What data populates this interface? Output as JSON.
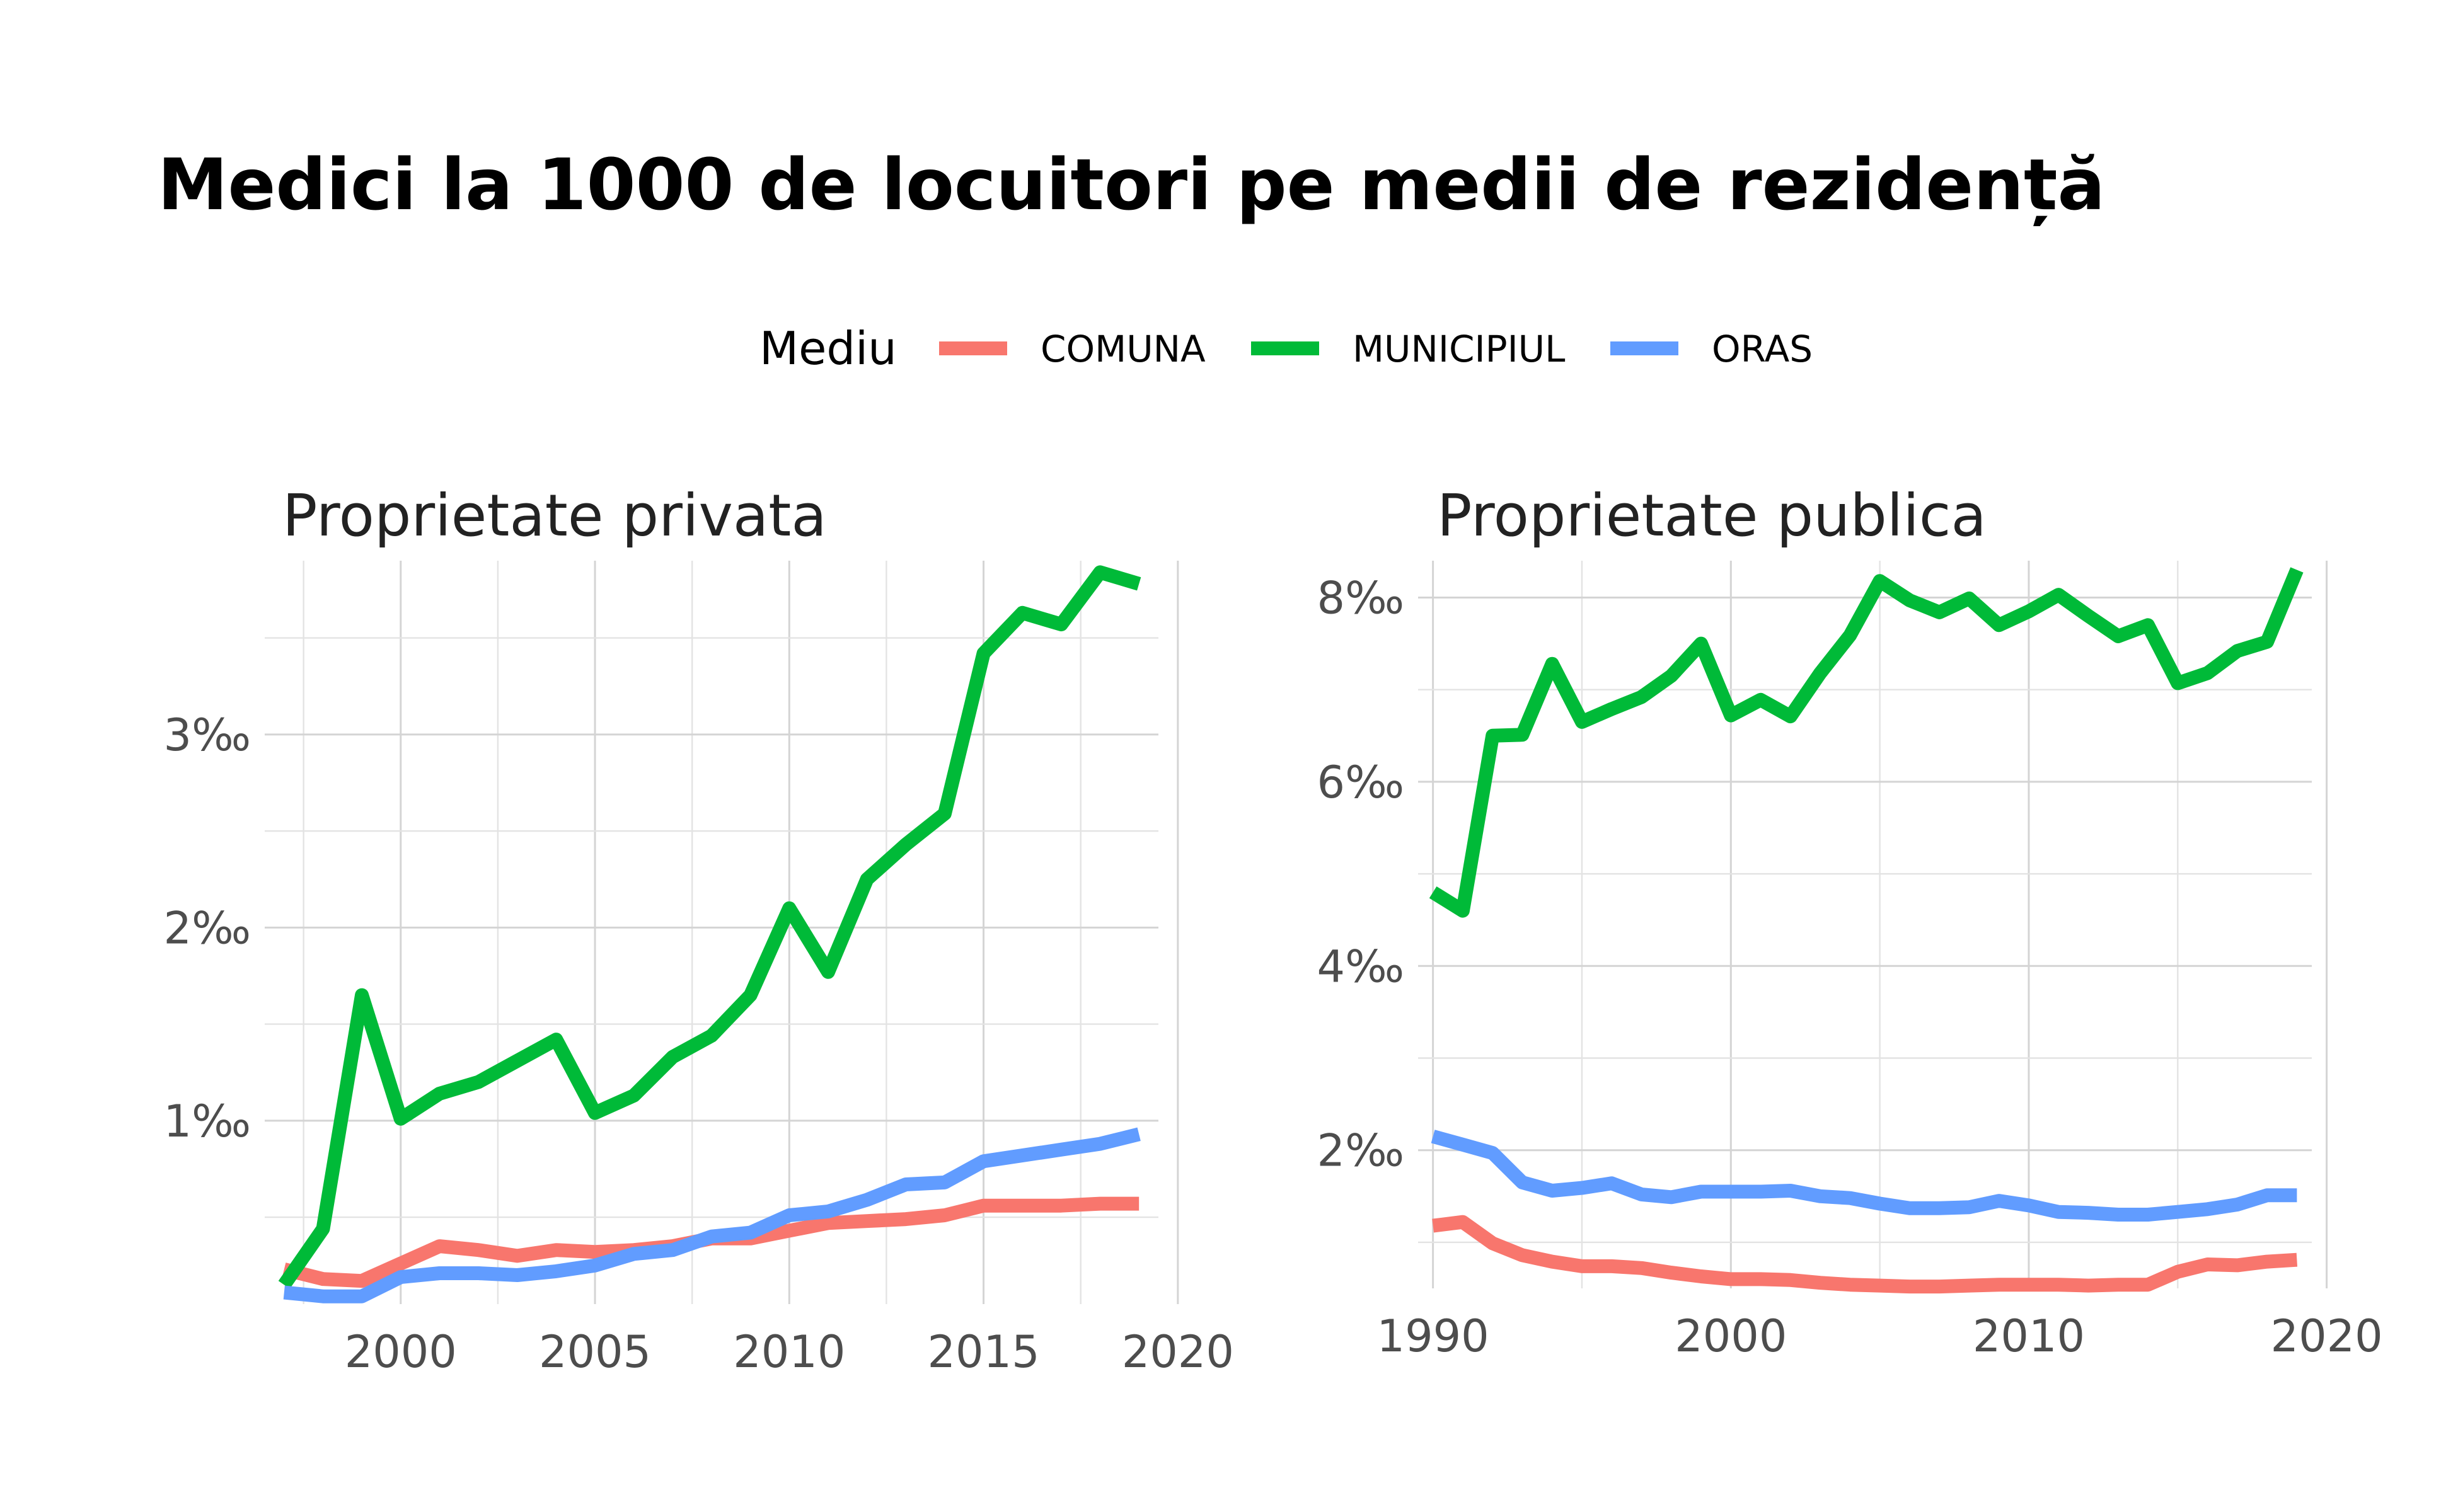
{
  "title": "Medici la 1000 de locuitori pe medii de rezidență",
  "legend": {
    "title": "Mediu",
    "position": "top",
    "items": [
      {
        "name": "COMUNA",
        "color": "#F8766D"
      },
      {
        "name": "MUNICIPIUL",
        "color": "#00BA38"
      },
      {
        "name": "ORAS",
        "color": "#619CFF"
      }
    ]
  },
  "chart_data": [
    {
      "type": "line",
      "title": "Proprietate privata",
      "xlabel": "",
      "ylabel": "",
      "xlim": [
        1996.5,
        2019.5
      ],
      "ylim": [
        0.05,
        3.9
      ],
      "x_ticks": [
        2000,
        2005,
        2010,
        2015,
        2020
      ],
      "y_ticks": [
        1,
        2,
        3
      ],
      "y_tick_labels": [
        "1‰",
        "2‰",
        "3‰"
      ],
      "grid": true,
      "x": [
        1997,
        1998,
        1999,
        2000,
        2001,
        2002,
        2003,
        2004,
        2005,
        2006,
        2007,
        2008,
        2009,
        2010,
        2011,
        2012,
        2013,
        2014,
        2015,
        2016,
        2017,
        2018,
        2019
      ],
      "series": [
        {
          "name": "COMUNA",
          "color": "#F8766D",
          "values": [
            0.23,
            0.18,
            0.17,
            0.26,
            0.35,
            0.33,
            0.3,
            0.33,
            0.32,
            0.33,
            0.35,
            0.39,
            0.39,
            0.43,
            0.47,
            0.48,
            0.49,
            0.51,
            0.56,
            0.56,
            0.56,
            0.57,
            0.57
          ]
        },
        {
          "name": "MUNICIPIUL",
          "color": "#00BA38",
          "values": [
            0.15,
            0.44,
            1.65,
            1.01,
            1.14,
            1.2,
            1.31,
            1.42,
            1.04,
            1.13,
            1.33,
            1.44,
            1.65,
            2.1,
            1.77,
            2.25,
            2.43,
            2.59,
            3.42,
            3.63,
            3.57,
            3.84,
            3.78
          ]
        },
        {
          "name": "ORAS",
          "color": "#619CFF",
          "values": [
            0.11,
            0.09,
            0.09,
            0.19,
            0.21,
            0.21,
            0.2,
            0.22,
            0.25,
            0.31,
            0.33,
            0.4,
            0.42,
            0.51,
            0.53,
            0.59,
            0.67,
            0.68,
            0.79,
            0.82,
            0.85,
            0.88,
            0.93
          ]
        }
      ]
    },
    {
      "type": "line",
      "title": "Proprietate publica",
      "xlabel": "",
      "ylabel": "",
      "xlim": [
        1989.5,
        2019.5
      ],
      "ylim": [
        0.5,
        8.4
      ],
      "x_ticks": [
        1990,
        2000,
        2010,
        2020
      ],
      "y_ticks": [
        2,
        4,
        6,
        8
      ],
      "y_tick_labels": [
        "2‰",
        "4‰",
        "6‰",
        "8‰"
      ],
      "grid": true,
      "x": [
        1990,
        1991,
        1992,
        1993,
        1994,
        1995,
        1996,
        1997,
        1998,
        1999,
        2000,
        2001,
        2002,
        2003,
        2004,
        2005,
        2006,
        2007,
        2008,
        2009,
        2010,
        2011,
        2012,
        2013,
        2014,
        2015,
        2016,
        2017,
        2018,
        2019
      ],
      "series": [
        {
          "name": "COMUNA",
          "color": "#F8766D",
          "values": [
            1.18,
            1.22,
            0.99,
            0.86,
            0.79,
            0.74,
            0.74,
            0.72,
            0.67,
            0.63,
            0.6,
            0.6,
            0.59,
            0.56,
            0.54,
            0.53,
            0.52,
            0.52,
            0.53,
            0.54,
            0.54,
            0.54,
            0.53,
            0.54,
            0.54,
            0.68,
            0.76,
            0.75,
            0.79,
            0.81
          ]
        },
        {
          "name": "MUNICIPIUL",
          "color": "#00BA38",
          "values": [
            4.8,
            4.6,
            6.5,
            6.51,
            7.28,
            6.65,
            6.79,
            6.92,
            7.15,
            7.5,
            6.72,
            6.89,
            6.71,
            7.18,
            7.59,
            8.18,
            7.97,
            7.84,
            7.99,
            7.7,
            7.85,
            8.03,
            7.8,
            7.58,
            7.7,
            7.07,
            7.18,
            7.42,
            7.52,
            8.3
          ]
        },
        {
          "name": "ORAS",
          "color": "#619CFF",
          "values": [
            2.15,
            2.06,
            1.97,
            1.65,
            1.56,
            1.59,
            1.64,
            1.52,
            1.49,
            1.55,
            1.55,
            1.55,
            1.56,
            1.5,
            1.48,
            1.42,
            1.37,
            1.37,
            1.38,
            1.45,
            1.4,
            1.33,
            1.32,
            1.3,
            1.3,
            1.33,
            1.36,
            1.41,
            1.51,
            1.51
          ]
        }
      ]
    }
  ]
}
